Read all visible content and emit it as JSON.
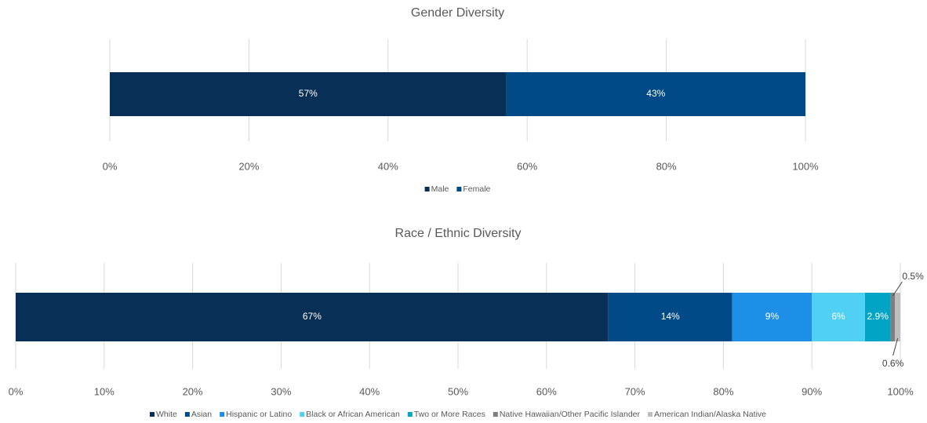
{
  "chart_data": [
    {
      "type": "stacked-bar",
      "orientation": "horizontal",
      "title": "Gender Diversity",
      "xlim": [
        0,
        100
      ],
      "xticks": [
        {
          "value": 0,
          "label": "0%"
        },
        {
          "value": 20,
          "label": "20%"
        },
        {
          "value": 40,
          "label": "40%"
        },
        {
          "value": 60,
          "label": "60%"
        },
        {
          "value": 80,
          "label": "80%"
        },
        {
          "value": 100,
          "label": "100%"
        }
      ],
      "grid": true,
      "legend": "bottom",
      "series": [
        {
          "name": "Male",
          "color": "#082f55",
          "values": [
            57
          ],
          "value_labels": [
            "57%"
          ]
        },
        {
          "name": "Female",
          "color": "#004b87",
          "values": [
            43
          ],
          "value_labels": [
            "43%"
          ]
        }
      ]
    },
    {
      "type": "stacked-bar",
      "orientation": "horizontal",
      "title": "Race / Ethnic Diversity",
      "xlim": [
        0,
        100
      ],
      "xticks": [
        {
          "value": 0,
          "label": "0%"
        },
        {
          "value": 10,
          "label": "10%"
        },
        {
          "value": 20,
          "label": "20%"
        },
        {
          "value": 30,
          "label": "30%"
        },
        {
          "value": 40,
          "label": "40%"
        },
        {
          "value": 50,
          "label": "50%"
        },
        {
          "value": 60,
          "label": "60%"
        },
        {
          "value": 70,
          "label": "70%"
        },
        {
          "value": 80,
          "label": "80%"
        },
        {
          "value": 90,
          "label": "90%"
        },
        {
          "value": 100,
          "label": "100%"
        }
      ],
      "grid": true,
      "legend": "bottom",
      "series": [
        {
          "name": "White",
          "color": "#082f55",
          "values": [
            67
          ],
          "value_labels": [
            "67%"
          ]
        },
        {
          "name": "Asian",
          "color": "#004b87",
          "values": [
            14
          ],
          "value_labels": [
            "14%"
          ]
        },
        {
          "name": "Hispanic or Latino",
          "color": "#1e8fe6",
          "values": [
            9
          ],
          "value_labels": [
            "9%"
          ]
        },
        {
          "name": "Black or African American",
          "color": "#4fd0f4",
          "values": [
            6
          ],
          "value_labels": [
            "6%"
          ]
        },
        {
          "name": "Two or More Races",
          "color": "#00a5c6",
          "values": [
            2.9
          ],
          "value_labels": [
            "2.9%"
          ]
        },
        {
          "name": "Native Hawaiian/Other Pacific Islander",
          "color": "#7f7f7f",
          "values": [
            0.5
          ],
          "value_labels": [
            "0.5%"
          ]
        },
        {
          "name": "American Indian/Alaska Native",
          "color": "#bfbfbf",
          "values": [
            0.6
          ],
          "value_labels": [
            "0.6%"
          ]
        }
      ]
    }
  ]
}
